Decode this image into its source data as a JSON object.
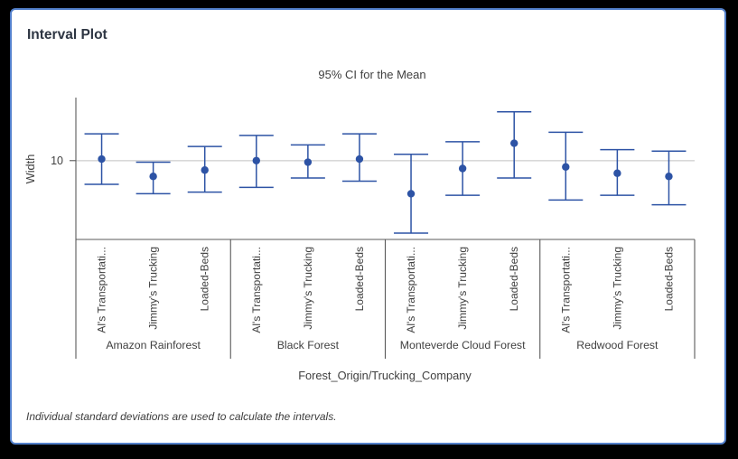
{
  "window": {
    "background": "#000000",
    "card_border_color": "#5380cb",
    "card_background": "#ffffff"
  },
  "title": "Interval Plot",
  "footnote": "Individual standard deviations are used to calculate the intervals.",
  "chart_data": {
    "type": "interval_plot",
    "subtitle": "95% CI for the Mean",
    "xlabel": "Forest_Origin/Trucking_Company",
    "ylabel": "Width",
    "ylim": [
      5,
      14
    ],
    "yticks": [
      10
    ],
    "ytick_label": "10",
    "grid": "horizontal-at-ticks",
    "legend": "none",
    "point_color": "#2d53a5",
    "groups": [
      {
        "name": "Amazon Rainforest",
        "items": [
          {
            "company": "Al's Transportati...",
            "mean": 10.1,
            "ci_low": 8.5,
            "ci_high": 11.7
          },
          {
            "company": "Jimmy's Trucking",
            "mean": 9.0,
            "ci_low": 7.9,
            "ci_high": 9.9
          },
          {
            "company": "Loaded-Beds",
            "mean": 9.4,
            "ci_low": 8.0,
            "ci_high": 10.9
          }
        ]
      },
      {
        "name": "Black Forest",
        "items": [
          {
            "company": "Al's Transportati...",
            "mean": 10.0,
            "ci_low": 8.3,
            "ci_high": 11.6
          },
          {
            "company": "Jimmy's Trucking",
            "mean": 9.9,
            "ci_low": 8.9,
            "ci_high": 11.0
          },
          {
            "company": "Loaded-Beds",
            "mean": 10.1,
            "ci_low": 8.7,
            "ci_high": 11.7
          }
        ]
      },
      {
        "name": "Monteverde Cloud Forest",
        "items": [
          {
            "company": "Al's Transportati...",
            "mean": 7.9,
            "ci_low": 5.4,
            "ci_high": 10.4
          },
          {
            "company": "Jimmy's Trucking",
            "mean": 9.5,
            "ci_low": 7.8,
            "ci_high": 11.2
          },
          {
            "company": "Loaded-Beds",
            "mean": 11.1,
            "ci_low": 8.9,
            "ci_high": 13.1
          }
        ]
      },
      {
        "name": "Redwood Forest",
        "items": [
          {
            "company": "Al's Transportati...",
            "mean": 9.6,
            "ci_low": 7.5,
            "ci_high": 11.8
          },
          {
            "company": "Jimmy's Trucking",
            "mean": 9.2,
            "ci_low": 7.8,
            "ci_high": 10.7
          },
          {
            "company": "Loaded-Beds",
            "mean": 9.0,
            "ci_low": 7.2,
            "ci_high": 10.6
          }
        ]
      }
    ]
  }
}
